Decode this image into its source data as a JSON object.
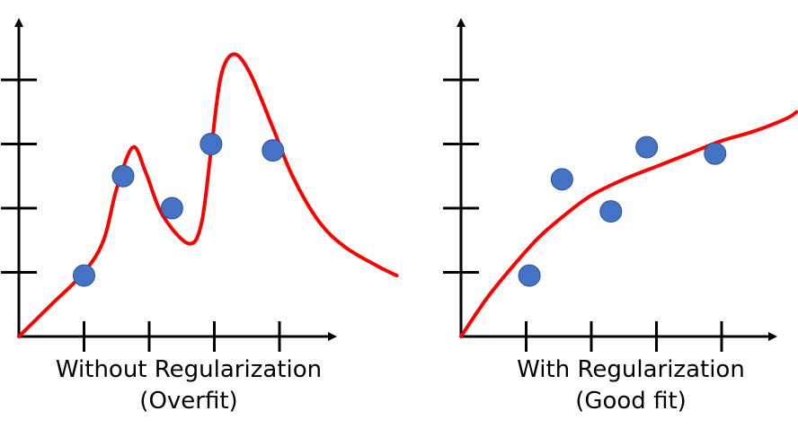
{
  "chart_data": [
    {
      "type": "scatter",
      "caption_line1": "Without Regularization",
      "caption_line2": "(Overfit)",
      "xlim": [
        0,
        5
      ],
      "ylim": [
        0,
        5
      ],
      "x_ticks": [
        1,
        2,
        3,
        4
      ],
      "y_ticks": [
        1,
        2,
        3,
        4
      ],
      "tick_labels_shown": false,
      "grid": false,
      "points": [
        {
          "x": 1.0,
          "y": 0.95
        },
        {
          "x": 1.6,
          "y": 2.5
        },
        {
          "x": 2.35,
          "y": 2.0
        },
        {
          "x": 2.95,
          "y": 3.0
        },
        {
          "x": 3.9,
          "y": 2.9
        }
      ],
      "fit_curve": [
        [
          0.0,
          0.0
        ],
        [
          0.5,
          0.5
        ],
        [
          1.0,
          1.0
        ],
        [
          1.3,
          1.5
        ],
        [
          1.5,
          2.3
        ],
        [
          1.75,
          2.95
        ],
        [
          1.95,
          2.55
        ],
        [
          2.2,
          1.9
        ],
        [
          2.6,
          1.45
        ],
        [
          2.8,
          1.75
        ],
        [
          2.95,
          2.9
        ],
        [
          3.1,
          4.05
        ],
        [
          3.3,
          4.4
        ],
        [
          3.55,
          4.1
        ],
        [
          3.9,
          3.25
        ],
        [
          4.2,
          2.5
        ],
        [
          4.6,
          1.8
        ],
        [
          5.0,
          1.4
        ],
        [
          5.5,
          1.1
        ],
        [
          5.8,
          0.95
        ]
      ],
      "marker_color": "#4472C4",
      "curve_color": "#FF0000"
    },
    {
      "type": "scatter",
      "caption_line1": "With Regularization",
      "caption_line2": "(Good fit)",
      "xlim": [
        0,
        5
      ],
      "ylim": [
        0,
        5
      ],
      "x_ticks": [
        1,
        2,
        3,
        4
      ],
      "y_ticks": [
        1,
        2,
        3,
        4
      ],
      "tick_labels_shown": false,
      "grid": false,
      "points": [
        {
          "x": 1.05,
          "y": 0.95
        },
        {
          "x": 1.55,
          "y": 2.45
        },
        {
          "x": 2.3,
          "y": 1.95
        },
        {
          "x": 2.85,
          "y": 2.95
        },
        {
          "x": 3.9,
          "y": 2.85
        }
      ],
      "fit_curve": [
        [
          0.0,
          0.0
        ],
        [
          0.4,
          0.6
        ],
        [
          0.8,
          1.1
        ],
        [
          1.2,
          1.55
        ],
        [
          1.6,
          1.9
        ],
        [
          2.0,
          2.2
        ],
        [
          2.5,
          2.45
        ],
        [
          3.0,
          2.65
        ],
        [
          3.5,
          2.85
        ],
        [
          4.0,
          3.05
        ],
        [
          4.5,
          3.2
        ],
        [
          5.0,
          3.4
        ],
        [
          5.15,
          3.5
        ]
      ],
      "marker_color": "#4472C4",
      "curve_color": "#FF0000"
    }
  ]
}
